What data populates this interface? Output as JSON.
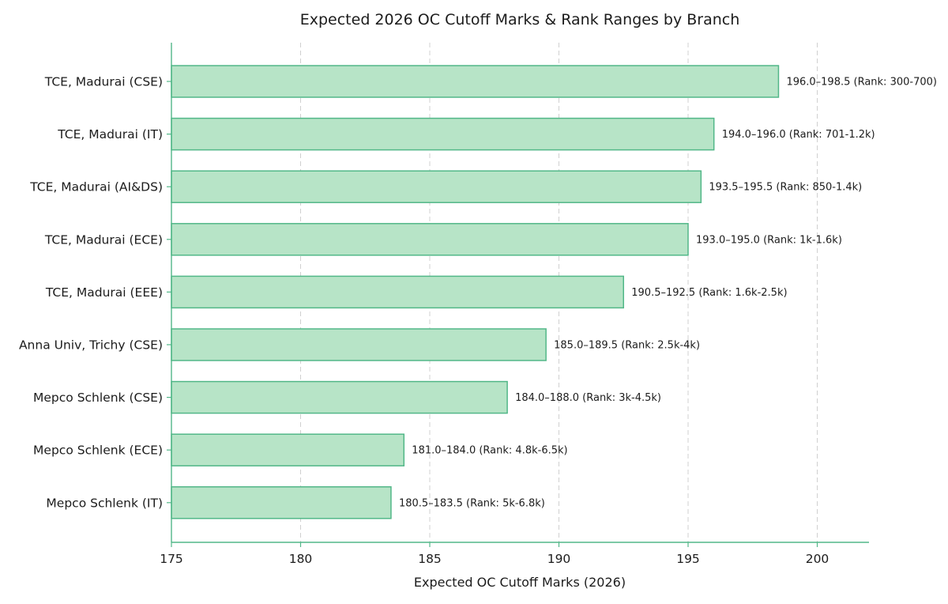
{
  "chart_data": {
    "type": "bar",
    "orientation": "horizontal",
    "title": "Expected 2026 OC Cutoff Marks & Rank Ranges by Branch",
    "xlabel": "Expected OC Cutoff Marks (2026)",
    "ylabel": "",
    "xlim": [
      175,
      202
    ],
    "xticks": [
      "175",
      "180",
      "185",
      "190",
      "195",
      "200"
    ],
    "xtick_values": [
      175,
      180,
      185,
      190,
      195,
      200
    ],
    "grid": "vertical dashed",
    "categories": [
      "TCE, Madurai (CSE)",
      "TCE, Madurai (IT)",
      "TCE, Madurai (AI&DS)",
      "TCE, Madurai (ECE)",
      "TCE, Madurai (EEE)",
      "Anna Univ, Trichy (CSE)",
      "Mepco Schlenk (CSE)",
      "Mepco Schlenk (ECE)",
      "Mepco Schlenk (IT)"
    ],
    "values": [
      198.5,
      196.0,
      195.5,
      195.0,
      192.5,
      189.5,
      188.0,
      184.0,
      183.5
    ],
    "data_labels": [
      "196.0–198.5 (Rank: 300-700)",
      "194.0–196.0 (Rank: 701-1.2k)",
      "193.5–195.5 (Rank: 850-1.4k)",
      "193.0–195.0 (Rank: 1k-1.6k)",
      "190.5–192.5 (Rank: 1.6k-2.5k)",
      "185.0–189.5 (Rank: 2.5k-4k)",
      "184.0–188.0 (Rank: 3k-4.5k)",
      "181.0–184.0 (Rank: 4.8k-6.5k)",
      "180.5–183.5 (Rank: 5k-6.8k)"
    ],
    "colors": {
      "bar_fill": "#b7e4c7",
      "bar_stroke": "#52b788",
      "axis": "#52b788"
    }
  }
}
